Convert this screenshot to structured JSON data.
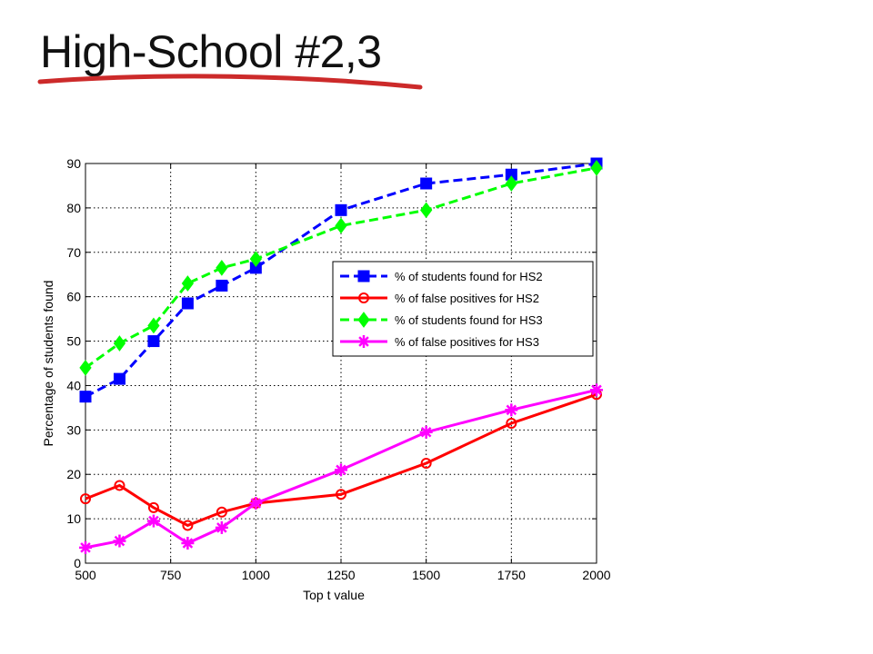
{
  "slide": {
    "title": "High-School #2,3",
    "underline_color": "#cc2a2a"
  },
  "chart_data": {
    "type": "line",
    "title": "",
    "xlabel": "Top t value",
    "ylabel": "Percentage of students found",
    "xlim": [
      500,
      2000
    ],
    "ylim": [
      0,
      90
    ],
    "x_ticks": [
      500,
      750,
      1000,
      1250,
      1500,
      1750,
      2000
    ],
    "y_ticks": [
      0,
      10,
      20,
      30,
      40,
      50,
      60,
      70,
      80,
      90
    ],
    "grid": true,
    "legend_position": "center-right",
    "series": [
      {
        "name": "% of students found for HS2",
        "color": "#0000ff",
        "line_style": "dashed",
        "marker": "square",
        "x": [
          500,
          600,
          700,
          800,
          900,
          1000,
          1250,
          1500,
          1750,
          2000
        ],
        "y": [
          37.5,
          41.5,
          50,
          58.5,
          62.5,
          66.5,
          79.5,
          85.5,
          87.5,
          90
        ]
      },
      {
        "name": "% of false positives for HS2",
        "color": "#ff0000",
        "line_style": "solid",
        "marker": "circle",
        "x": [
          500,
          600,
          700,
          800,
          900,
          1000,
          1250,
          1500,
          1750,
          2000
        ],
        "y": [
          14.5,
          17.5,
          12.5,
          8.5,
          11.5,
          13.5,
          15.5,
          22.5,
          31.5,
          38
        ]
      },
      {
        "name": "% of students found for HS3",
        "color": "#00ff00",
        "line_style": "dashed",
        "marker": "diamond",
        "x": [
          500,
          600,
          700,
          800,
          900,
          1000,
          1250,
          1500,
          1750,
          2000
        ],
        "y": [
          44,
          49.5,
          53.5,
          63,
          66.5,
          68.5,
          76,
          79.5,
          85.5,
          89
        ]
      },
      {
        "name": "% of false positives for HS3",
        "color": "#ff00ff",
        "line_style": "solid",
        "marker": "asterisk",
        "x": [
          500,
          600,
          700,
          800,
          900,
          1000,
          1250,
          1500,
          1750,
          2000
        ],
        "y": [
          3.5,
          5,
          9.5,
          4.5,
          8,
          13.5,
          21,
          29.5,
          34.5,
          39
        ]
      }
    ]
  }
}
